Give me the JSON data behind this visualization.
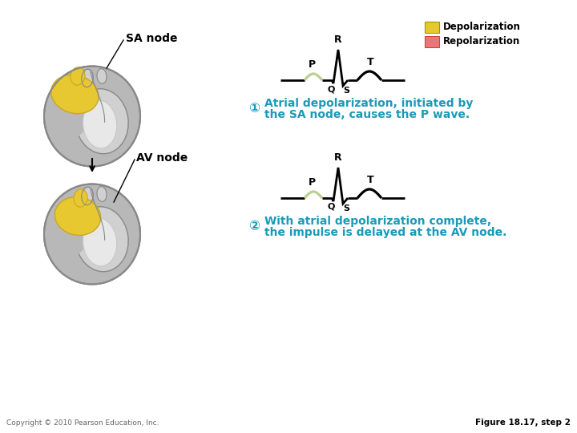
{
  "background_color": "#ffffff",
  "legend_depolarization_color": "#e8c830",
  "legend_repolarization_color": "#e87878",
  "legend_depolarization_label": "Depolarization",
  "legend_repolarization_label": "Repolarization",
  "ecg_p_color": "#b8d090",
  "ecg_line_color": "#000000",
  "sa_node_label": "SA node",
  "av_node_label": "AV node",
  "text1_circle": "①",
  "text1_line1": "Atrial depolarization, initiated by",
  "text1_line2": "the SA node, causes the P wave.",
  "text2_circle": "②",
  "text2_line1": "With atrial depolarization complete,",
  "text2_line2": "the impulse is delayed at the AV node.",
  "text_color": "#1a9ab8",
  "label_color": "#000000",
  "copyright_text": "Copyright © 2010 Pearson Education, Inc.",
  "figure_label": "Figure 18.17, step 2",
  "heart_gray": "#b8b8b8",
  "heart_dark_gray": "#888888",
  "heart_light_gray": "#d0d0d0",
  "heart_white": "#e8e8e8",
  "heart_yellow": "#e8c830",
  "heart_yellow_edge": "#c8a820",
  "heart_inner_gray": "#c8c8c8",
  "heart_vessel_gray": "#a0a0a0"
}
